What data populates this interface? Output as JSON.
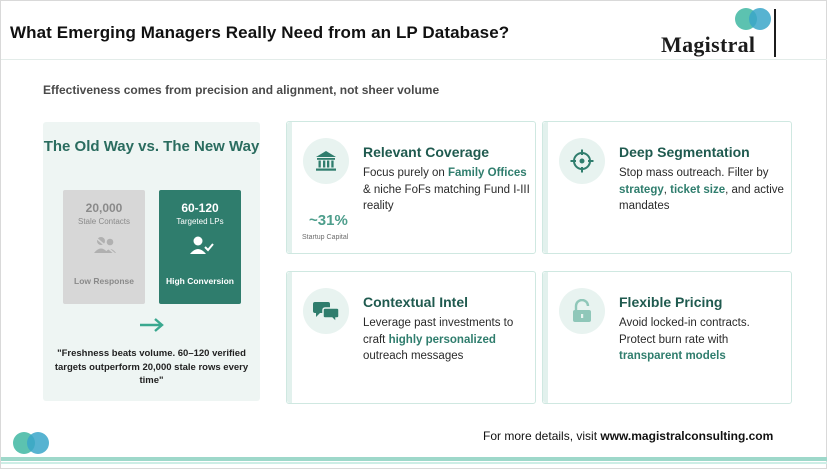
{
  "header": {
    "title": "What Emerging Managers Really Need from an LP Database?",
    "logo_text": "Magistral"
  },
  "subtitle": "Effectiveness comes from precision and alignment, not sheer volume",
  "comparison": {
    "title": "The Old Way vs. The New Way",
    "old": {
      "number": "20,000",
      "label": "Stale Contacts",
      "icon": "users-icon",
      "footer": "Low Response"
    },
    "new": {
      "number": "60-120",
      "label": "Targeted LPs",
      "icon": "user-check-icon",
      "footer": "High Conversion"
    },
    "arrow_icon": "arrow-right-icon",
    "quote": "\"Freshness beats volume. 60–120 verified targets outperform 20,000 stale rows every time\""
  },
  "cards": [
    {
      "icon": "bank-icon",
      "title": "Relevant Coverage",
      "text_parts": [
        "Focus purely on ",
        "Family Offices",
        " & niche FoFs matching Fund I-III reality"
      ],
      "metric": {
        "value": "~31%",
        "label": "Startup Capital"
      }
    },
    {
      "icon": "crosshair-icon",
      "title": "Deep Segmentation",
      "text_parts": [
        "Stop mass outreach. Filter by ",
        "strategy",
        ", ",
        "ticket size",
        ", and active mandates"
      ]
    },
    {
      "icon": "chat-bubbles-icon",
      "title": "Contextual Intel",
      "text_parts": [
        "Leverage past investments to craft ",
        "highly personalized",
        " outreach messages"
      ]
    },
    {
      "icon": "unlock-icon",
      "title": "Flexible Pricing",
      "text_parts": [
        "Avoid locked-in contracts. Protect burn rate with ",
        "transparent models"
      ]
    }
  ],
  "footer": {
    "text": "For more details, visit ",
    "link": "www.magistralconsulting.com"
  },
  "colors": {
    "accent": "#2f7d6d",
    "heading": "#1f5a4f",
    "panel": "#eef5f3",
    "teal_dot": "#5cc2b0",
    "blue_dot": "#3aa6c9"
  }
}
